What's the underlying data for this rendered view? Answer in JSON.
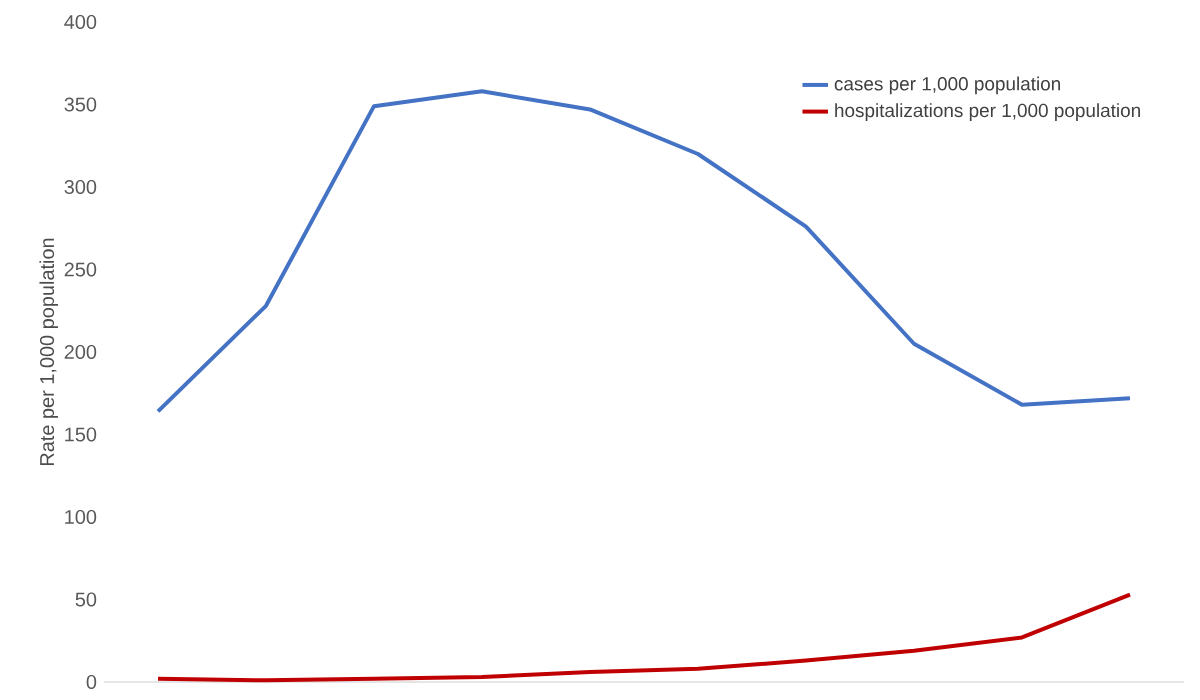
{
  "chart_data": {
    "type": "line",
    "ylabel": "Rate per 1,000 population",
    "categories": [
      null,
      null,
      null,
      null,
      null,
      null,
      null,
      null,
      null,
      null
    ],
    "series": [
      {
        "name": "cases per 1,000 population",
        "color": "#4472c4",
        "values": [
          164,
          228,
          349,
          358,
          347,
          320,
          276,
          205,
          168,
          172
        ]
      },
      {
        "name": "hospitalizations per 1,000 population",
        "color": "#c00000",
        "values": [
          2,
          1,
          2,
          3,
          6,
          8,
          13,
          19,
          27,
          53
        ]
      }
    ],
    "ylim": [
      0,
      400
    ],
    "yticks": [
      0,
      50,
      100,
      150,
      200,
      250,
      300,
      350,
      400
    ],
    "legend": "top right",
    "grid": false,
    "marker": "none",
    "line_style": "solid"
  }
}
